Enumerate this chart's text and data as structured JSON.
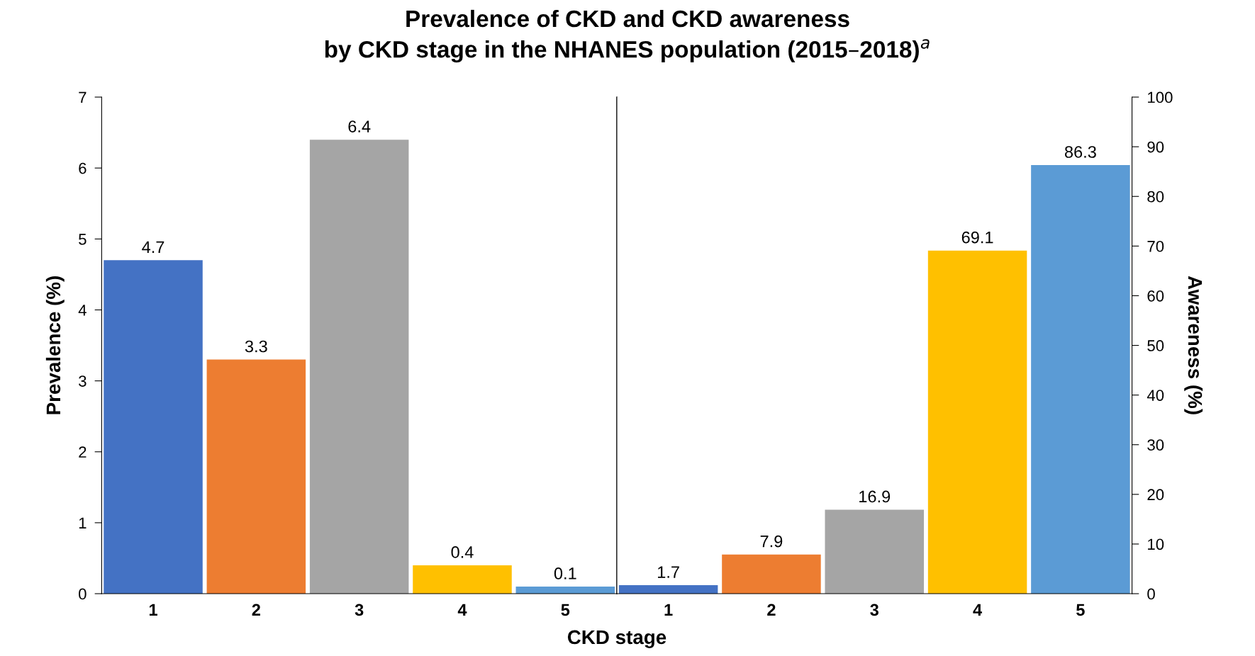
{
  "chart_data": [
    {
      "type": "bar",
      "title": "Prevalence of CKD and CKD awareness\nby CKD stage in the NHANES population (2015–2018)$^{a}$",
      "xlabel": "CKD stage",
      "ylabel": "Prevalence (%)",
      "categories": [
        "1",
        "2",
        "3",
        "4",
        "5"
      ],
      "values": [
        4.7,
        3.3,
        6.4,
        0.4,
        0.1
      ],
      "colors": [
        "#4472c4",
        "#ed7d31",
        "#a5a5a5",
        "#ffc000",
        "#5b9bd5"
      ],
      "ylim": [
        0,
        7
      ],
      "yticks": [
        0,
        1,
        2,
        3,
        4,
        5,
        6,
        7
      ],
      "data_labels": true,
      "grid": false,
      "legend": false
    },
    {
      "type": "bar",
      "y2label": "Awareness (%)",
      "categories": [
        "1",
        "2",
        "3",
        "4",
        "5"
      ],
      "series": [
        {
          "axis": "y2",
          "values": [
            1.7,
            7.9,
            16.9,
            69.1,
            86.3
          ],
          "colors": [
            "#4472c4",
            "#ed7d31",
            "#a5a5a5",
            "#ffc000",
            "#5b9bd5"
          ]
        }
      ],
      "y2lim": [
        0,
        100
      ],
      "y2ticks": [
        0,
        10,
        20,
        30,
        40,
        50,
        60,
        70,
        80,
        90,
        100
      ],
      "data_labels": true,
      "grid": false,
      "legend": false
    }
  ]
}
